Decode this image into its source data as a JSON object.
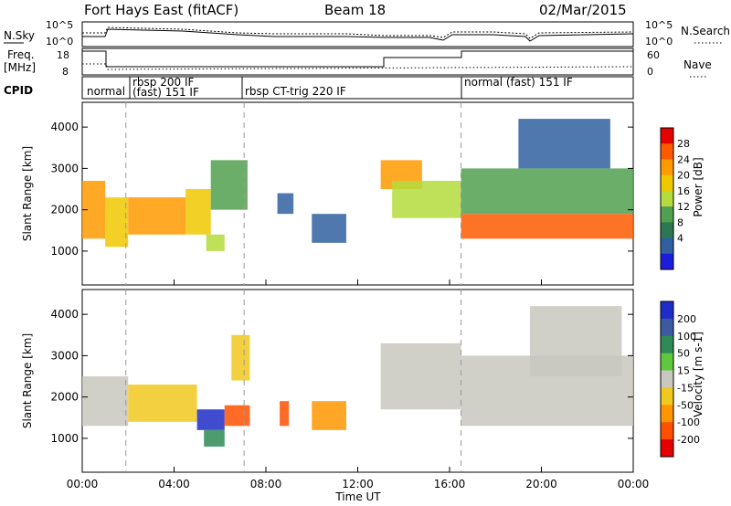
{
  "header": {
    "station": "Fort Hays East (fitACF)",
    "beam": "Beam 18",
    "date": "02/Mar/2015"
  },
  "noise_panel": {
    "left_label": "N.Sky",
    "right_label": "N.Search",
    "left_ticks": [
      "10^5",
      "10^0"
    ],
    "right_ticks": [
      "10^5",
      "10^0"
    ]
  },
  "freq_panel": {
    "left_label_line1": "Freq.",
    "left_label_line2": "[MHz]",
    "right_label": "Nave",
    "left_ticks": [
      "18",
      "8"
    ],
    "right_ticks": [
      "60",
      "0"
    ]
  },
  "cpid": {
    "label": "CPID",
    "modes": [
      "normal",
      "rbsp 200 IF",
      "(fast) 151 IF",
      "rbsp CT-trig 220 IF",
      "normal (fast) 151 IF"
    ]
  },
  "colorbars": {
    "power": {
      "title": "Power [dB]",
      "ticks": [
        "28",
        "24",
        "20",
        "16",
        "12",
        "8",
        "4"
      ],
      "colors": [
        "#e60000",
        "#ff5a00",
        "#ff9a00",
        "#f0c800",
        "#b4dc3c",
        "#50a050",
        "#2d7850",
        "#3060a0",
        "#1c1cdc"
      ]
    },
    "velocity": {
      "title": "Velocity [m s-1]",
      "ticks": [
        "200",
        "100",
        "50",
        "15",
        "-15",
        "-50",
        "-100",
        "-200"
      ],
      "colors": [
        "#1e2dc8",
        "#3c5aa0",
        "#2e8b57",
        "#5fc83c",
        "#c8c8c0",
        "#f0c81e",
        "#ff9600",
        "#ff5000",
        "#e60000"
      ]
    }
  },
  "axes": {
    "ylabel": "Slant Range [km]",
    "xlabel": "Time UT",
    "yticks": [
      "4000",
      "3000",
      "2000",
      "1000"
    ],
    "xticks": [
      "00:00",
      "04:00",
      "08:00",
      "12:00",
      "16:00",
      "20:00",
      "00:00"
    ]
  },
  "chart_data": [
    {
      "type": "heatmap",
      "title": "",
      "xlabel": "Time UT",
      "ylabel": "Slant Range [km]",
      "xlim": [
        0,
        24
      ],
      "ylim": [
        180,
        4600
      ],
      "colorbar": "Power [dB]",
      "regions": [
        {
          "t0": 0.0,
          "t1": 1.0,
          "r0": 1300,
          "r1": 2700,
          "value": 20
        },
        {
          "t0": 1.0,
          "t1": 2.0,
          "r0": 1100,
          "r1": 2300,
          "value": 16
        },
        {
          "t0": 2.0,
          "t1": 4.5,
          "r0": 1400,
          "r1": 2300,
          "value": 20
        },
        {
          "t0": 4.5,
          "t1": 5.6,
          "r0": 1400,
          "r1": 2500,
          "value": 16
        },
        {
          "t0": 5.6,
          "t1": 7.2,
          "r0": 2000,
          "r1": 3200,
          "value": 8
        },
        {
          "t0": 5.4,
          "t1": 6.2,
          "r0": 1000,
          "r1": 1400,
          "value": 12
        },
        {
          "t0": 8.5,
          "t1": 9.2,
          "r0": 1900,
          "r1": 2400,
          "value": 4
        },
        {
          "t0": 10.0,
          "t1": 11.5,
          "r0": 1200,
          "r1": 1900,
          "value": 4
        },
        {
          "t0": 13.0,
          "t1": 14.8,
          "r0": 2500,
          "r1": 3200,
          "value": 20
        },
        {
          "t0": 13.5,
          "t1": 16.5,
          "r0": 1800,
          "r1": 2700,
          "value": 12
        },
        {
          "t0": 16.5,
          "t1": 24.0,
          "r0": 1300,
          "r1": 1900,
          "value": 24
        },
        {
          "t0": 16.5,
          "t1": 24.0,
          "r0": 1900,
          "r1": 3000,
          "value": 8
        },
        {
          "t0": 19.0,
          "t1": 23.0,
          "r0": 3000,
          "r1": 4200,
          "value": 4
        }
      ]
    },
    {
      "type": "heatmap",
      "title": "",
      "xlabel": "Time UT",
      "ylabel": "Slant Range [km]",
      "xlim": [
        0,
        24
      ],
      "ylim": [
        180,
        4600
      ],
      "colorbar": "Velocity [m s-1]",
      "regions": [
        {
          "t0": 0.0,
          "t1": 2.0,
          "r0": 1300,
          "r1": 2500,
          "value": -15
        },
        {
          "t0": 2.0,
          "t1": 5.0,
          "r0": 1400,
          "r1": 2300,
          "value": -50
        },
        {
          "t0": 5.0,
          "t1": 6.2,
          "r0": 1200,
          "r1": 1700,
          "value": 200
        },
        {
          "t0": 5.3,
          "t1": 6.2,
          "r0": 800,
          "r1": 1200,
          "value": 50
        },
        {
          "t0": 6.2,
          "t1": 7.3,
          "r0": 1300,
          "r1": 1800,
          "value": -200
        },
        {
          "t0": 6.5,
          "t1": 7.3,
          "r0": 2400,
          "r1": 3500,
          "value": -50
        },
        {
          "t0": 8.6,
          "t1": 9.0,
          "r0": 1300,
          "r1": 1900,
          "value": -200
        },
        {
          "t0": 10.0,
          "t1": 11.5,
          "r0": 1200,
          "r1": 1900,
          "value": -100
        },
        {
          "t0": 13.0,
          "t1": 16.5,
          "r0": 1700,
          "r1": 3300,
          "value": -15
        },
        {
          "t0": 16.5,
          "t1": 24.0,
          "r0": 1300,
          "r1": 3000,
          "value": -15
        },
        {
          "t0": 19.5,
          "t1": 23.5,
          "r0": 2500,
          "r1": 4200,
          "value": -15
        }
      ]
    }
  ]
}
